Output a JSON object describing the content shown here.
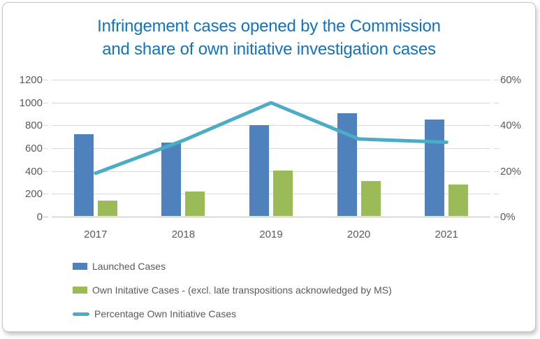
{
  "title": {
    "line1": "Infringement cases opened by the Commission",
    "line2": "and share of own initiative investigation cases",
    "color": "#1274BD"
  },
  "chart_data": {
    "type": "combo-bar-line",
    "categories": [
      "2017",
      "2018",
      "2019",
      "2020",
      "2021"
    ],
    "series": [
      {
        "name": "Launched Cases",
        "type": "bar",
        "axis": "left",
        "color": "#4F81BD",
        "values": [
          716,
          644,
          797,
          903,
          847
        ]
      },
      {
        "name": "Own Initative Cases - (excl. late transpositions acknowledged by MS)",
        "type": "bar",
        "axis": "left",
        "color": "#9BBB59",
        "values": [
          136,
          215,
          398,
          307,
          276
        ]
      },
      {
        "name": "Percentage Own Initiative Cases",
        "type": "line",
        "axis": "right",
        "color": "#4BACC6",
        "unit": "%",
        "values": [
          19,
          33.4,
          49.9,
          34,
          32.6
        ]
      }
    ],
    "left_axis": {
      "min": 0,
      "max": 1200,
      "tick_labels": [
        "1200",
        "1000",
        "800",
        "600",
        "400",
        "200",
        "0"
      ]
    },
    "right_axis": {
      "min": 0,
      "max": 60,
      "tick_labels": [
        "60%",
        "40%",
        "20%",
        "0%"
      ]
    },
    "grid": {
      "horizontal": true,
      "color": "#D9D9D9",
      "axis_color": "#BFBFBF"
    },
    "legend_position": "bottom-left"
  }
}
